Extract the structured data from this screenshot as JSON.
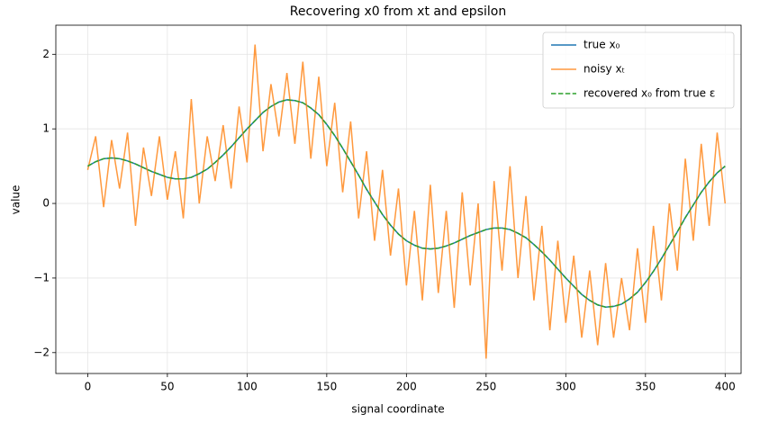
{
  "chart_data": {
    "type": "line",
    "title": "Recovering x0 from xt and epsilon",
    "x_label": "signal coordinate",
    "y_label": "value",
    "x": [
      0,
      5,
      10,
      15,
      20,
      25,
      30,
      35,
      40,
      45,
      50,
      55,
      60,
      65,
      70,
      75,
      80,
      85,
      90,
      95,
      100,
      105,
      110,
      115,
      120,
      125,
      130,
      135,
      140,
      145,
      150,
      155,
      160,
      165,
      170,
      175,
      180,
      185,
      190,
      195,
      200,
      205,
      210,
      215,
      220,
      225,
      230,
      235,
      240,
      245,
      250,
      255,
      260,
      265,
      270,
      275,
      280,
      285,
      290,
      295,
      300,
      305,
      310,
      315,
      320,
      325,
      330,
      335,
      340,
      345,
      350,
      355,
      360,
      365,
      370,
      375,
      380,
      385,
      390,
      395,
      400
    ],
    "series": [
      {
        "name": "true x₀",
        "color": "#1f77b4",
        "dashed": false,
        "values": [
          0.5,
          0.56,
          0.6,
          0.61,
          0.6,
          0.57,
          0.53,
          0.48,
          0.43,
          0.39,
          0.35,
          0.33,
          0.33,
          0.35,
          0.4,
          0.46,
          0.55,
          0.65,
          0.76,
          0.88,
          1,
          1.11,
          1.22,
          1.3,
          1.36,
          1.39,
          1.38,
          1.35,
          1.28,
          1.19,
          1.06,
          0.91,
          0.74,
          0.56,
          0.38,
          0.19,
          0.02,
          -0.15,
          -0.29,
          -0.41,
          -0.5,
          -0.56,
          -0.6,
          -0.61,
          -0.6,
          -0.57,
          -0.53,
          -0.48,
          -0.43,
          -0.39,
          -0.35,
          -0.33,
          -0.33,
          -0.35,
          -0.4,
          -0.46,
          -0.55,
          -0.65,
          -0.76,
          -0.88,
          -1,
          -1.11,
          -1.22,
          -1.3,
          -1.36,
          -1.39,
          -1.38,
          -1.35,
          -1.28,
          -1.19,
          -1.06,
          -0.91,
          -0.74,
          -0.56,
          -0.38,
          -0.19,
          -0.02,
          0.15,
          0.29,
          0.41,
          0.5
        ]
      },
      {
        "name": "noisy xₜ",
        "color": "#ff7f0e",
        "dashed": false,
        "values": [
          0.45,
          0.9,
          -0.05,
          0.85,
          0.2,
          0.95,
          -0.3,
          0.75,
          0.1,
          0.9,
          0.05,
          0.7,
          -0.2,
          1.4,
          0,
          0.9,
          0.3,
          1.05,
          0.2,
          1.3,
          0.55,
          2.13,
          0.7,
          1.6,
          0.9,
          1.75,
          0.8,
          1.9,
          0.6,
          1.7,
          0.5,
          1.35,
          0.15,
          1.1,
          -0.2,
          0.7,
          -0.5,
          0.45,
          -0.7,
          0.2,
          -1.1,
          -0.1,
          -1.3,
          0.25,
          -1.2,
          -0.1,
          -1.4,
          0.15,
          -1.1,
          0,
          -2.08,
          0.3,
          -0.9,
          0.5,
          -1,
          0.1,
          -1.3,
          -0.3,
          -1.7,
          -0.5,
          -1.6,
          -0.7,
          -1.8,
          -0.9,
          -1.9,
          -0.8,
          -1.8,
          -1,
          -1.7,
          -0.6,
          -1.6,
          -0.3,
          -1.3,
          0,
          -0.9,
          0.6,
          -0.5,
          0.8,
          -0.3,
          0.95,
          0
        ]
      },
      {
        "name": "recovered x₀ from true ε",
        "color": "#2ca02c",
        "dashed": true,
        "values": [
          0.5,
          0.56,
          0.6,
          0.61,
          0.6,
          0.57,
          0.53,
          0.48,
          0.43,
          0.39,
          0.35,
          0.33,
          0.33,
          0.35,
          0.4,
          0.46,
          0.55,
          0.65,
          0.76,
          0.88,
          1,
          1.11,
          1.22,
          1.3,
          1.36,
          1.39,
          1.38,
          1.35,
          1.28,
          1.19,
          1.06,
          0.91,
          0.74,
          0.56,
          0.38,
          0.19,
          0.02,
          -0.15,
          -0.29,
          -0.41,
          -0.5,
          -0.56,
          -0.6,
          -0.61,
          -0.6,
          -0.57,
          -0.53,
          -0.48,
          -0.43,
          -0.39,
          -0.35,
          -0.33,
          -0.33,
          -0.35,
          -0.4,
          -0.46,
          -0.55,
          -0.65,
          -0.76,
          -0.88,
          -1,
          -1.11,
          -1.22,
          -1.3,
          -1.36,
          -1.39,
          -1.38,
          -1.35,
          -1.28,
          -1.19,
          -1.06,
          -0.91,
          -0.74,
          -0.56,
          -0.38,
          -0.19,
          -0.02,
          0.15,
          0.29,
          0.41,
          0.5
        ]
      }
    ],
    "xlim": [
      -20,
      410
    ],
    "ylim": [
      -2.28,
      2.39
    ],
    "xticks": [
      0,
      50,
      100,
      150,
      200,
      250,
      300,
      350,
      400
    ],
    "yticks": [
      {
        "value": -2,
        "label": "−2"
      },
      {
        "value": -1,
        "label": "−1"
      },
      0,
      1,
      2
    ],
    "grid": true,
    "legend": "upper right"
  }
}
